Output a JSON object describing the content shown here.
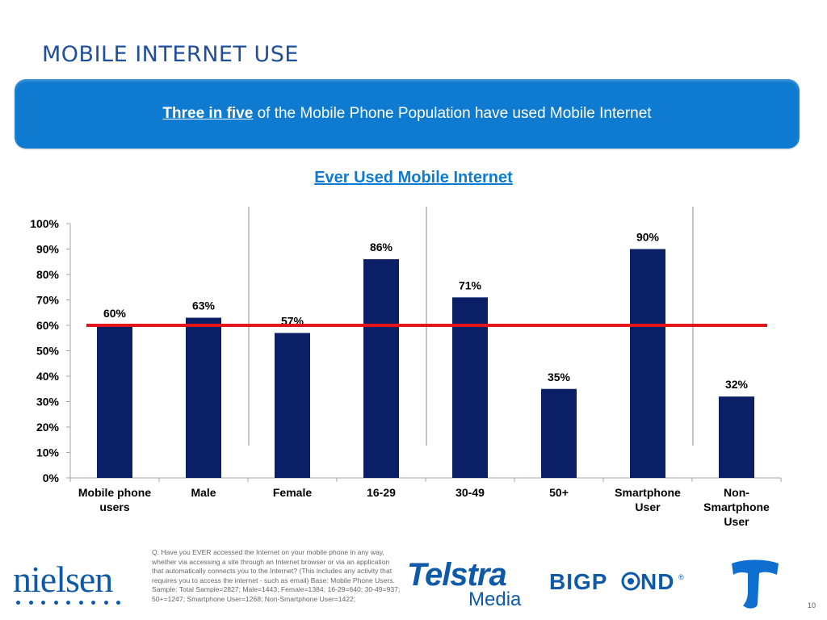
{
  "slide": {
    "title": "MOBILE INTERNET USE",
    "page_number": "10"
  },
  "banner": {
    "highlight": "Three in five",
    "text": " of the Mobile Phone Population have used Mobile Internet"
  },
  "chart_data": {
    "type": "bar",
    "title": "Ever Used Mobile Internet",
    "categories": [
      [
        "Mobile phone",
        "users"
      ],
      [
        "Male"
      ],
      [
        "Female"
      ],
      [
        "16-29"
      ],
      [
        "30-49"
      ],
      [
        "50+"
      ],
      [
        "Smartphone",
        "User"
      ],
      [
        "Non-",
        "Smartphone",
        "User"
      ]
    ],
    "values": [
      60,
      63,
      57,
      86,
      71,
      35,
      90,
      32
    ],
    "value_labels": [
      "60%",
      "63%",
      "57%",
      "86%",
      "71%",
      "35%",
      "90%",
      "32%"
    ],
    "ylim": [
      0,
      100
    ],
    "yticks": [
      "0%",
      "10%",
      "20%",
      "30%",
      "40%",
      "50%",
      "60%",
      "70%",
      "80%",
      "90%",
      "100%"
    ],
    "reference_line": 60,
    "group_separators_after": [
      1,
      3,
      6
    ],
    "colors": {
      "bar": "#0a1f66",
      "reference_line": "#e3161b",
      "axis": "#a6a6a6",
      "separator": "#8c8c8c"
    },
    "grid": false,
    "legend": "none"
  },
  "footnote": "Q. Have you EVER accessed the Internet on your mobile phone in any way, whether via accessing a site through an Internet browser or via an application that automatically connects you to the Internet? (This includes any activity that requires you to access the internet - such as email)  Base: Mobile Phone Users. Sample: Total Sample=2827; Male=1443; Female=1384; 16-29=640; 30-49=937; 50+=1247; Smartphone User=1268; Non-Smartphone User=1422;",
  "logos": {
    "nielsen": "nielsen",
    "telstra": "Telstra",
    "media": "Media",
    "bigpond": "BIGPOND"
  },
  "colors": {
    "title": "#1f4e9b",
    "banner": "#0f7bd0",
    "brand_blue": "#0f5aa8"
  }
}
